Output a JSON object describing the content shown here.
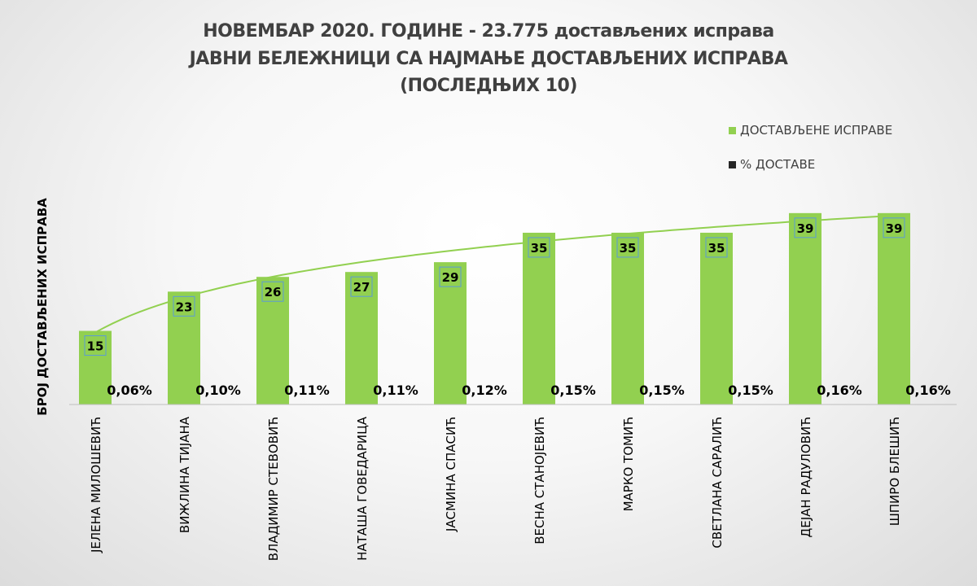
{
  "chart_data": {
    "type": "bar",
    "title_lines": [
      "НОВЕМБАР 2020. ГОДИНЕ - 23.775 достављених исправа",
      "ЈАВНИ БЕЛЕЖНИЦИ СА НАЈМАЊЕ ДОСТАВЉЕНИХ ИСПРАВА",
      "(ПОСЛЕДЊИХ 10)"
    ],
    "ylabel": "БРОЈ ДОСТАВЉЕНИХ ИСПРАВА",
    "categories": [
      "ЈЕЛЕНА МИЛОШЕВИЋ",
      "ВИЖЛИНА ТИЈАНА",
      "ВЛАДИМИР СТЕВОВИЋ",
      "НАТАША ГОВЕДАРИЦА",
      "ЈАСМИНА СПАСИЋ",
      "ВЕСНА СТАНОЈЕВИЋ",
      "МАРКО ТОМИЋ",
      "СВЕТЛАНА САРАЛИЋ",
      "ДЕЈАН РАДУЛОВИЋ",
      "ШПИРО БЛЕШИЋ"
    ],
    "series": [
      {
        "name": "ДОСТАВЉЕНЕ ИСПРАВЕ",
        "color": "#92d050",
        "values": [
          15,
          23,
          26,
          27,
          29,
          35,
          35,
          35,
          39,
          39
        ]
      },
      {
        "name": "% ДОСТАВЕ",
        "color": "#262626",
        "labels": [
          "0,06%",
          "0,10%",
          "0,11%",
          "0,11%",
          "0,12%",
          "0,15%",
          "0,15%",
          "0,15%",
          "0,16%",
          "0,16%"
        ]
      }
    ],
    "trendline": {
      "type": "logarithmic",
      "color": "#92d050"
    },
    "ylim": [
      0,
      40
    ],
    "legend_position": "top-right",
    "grid": false
  }
}
